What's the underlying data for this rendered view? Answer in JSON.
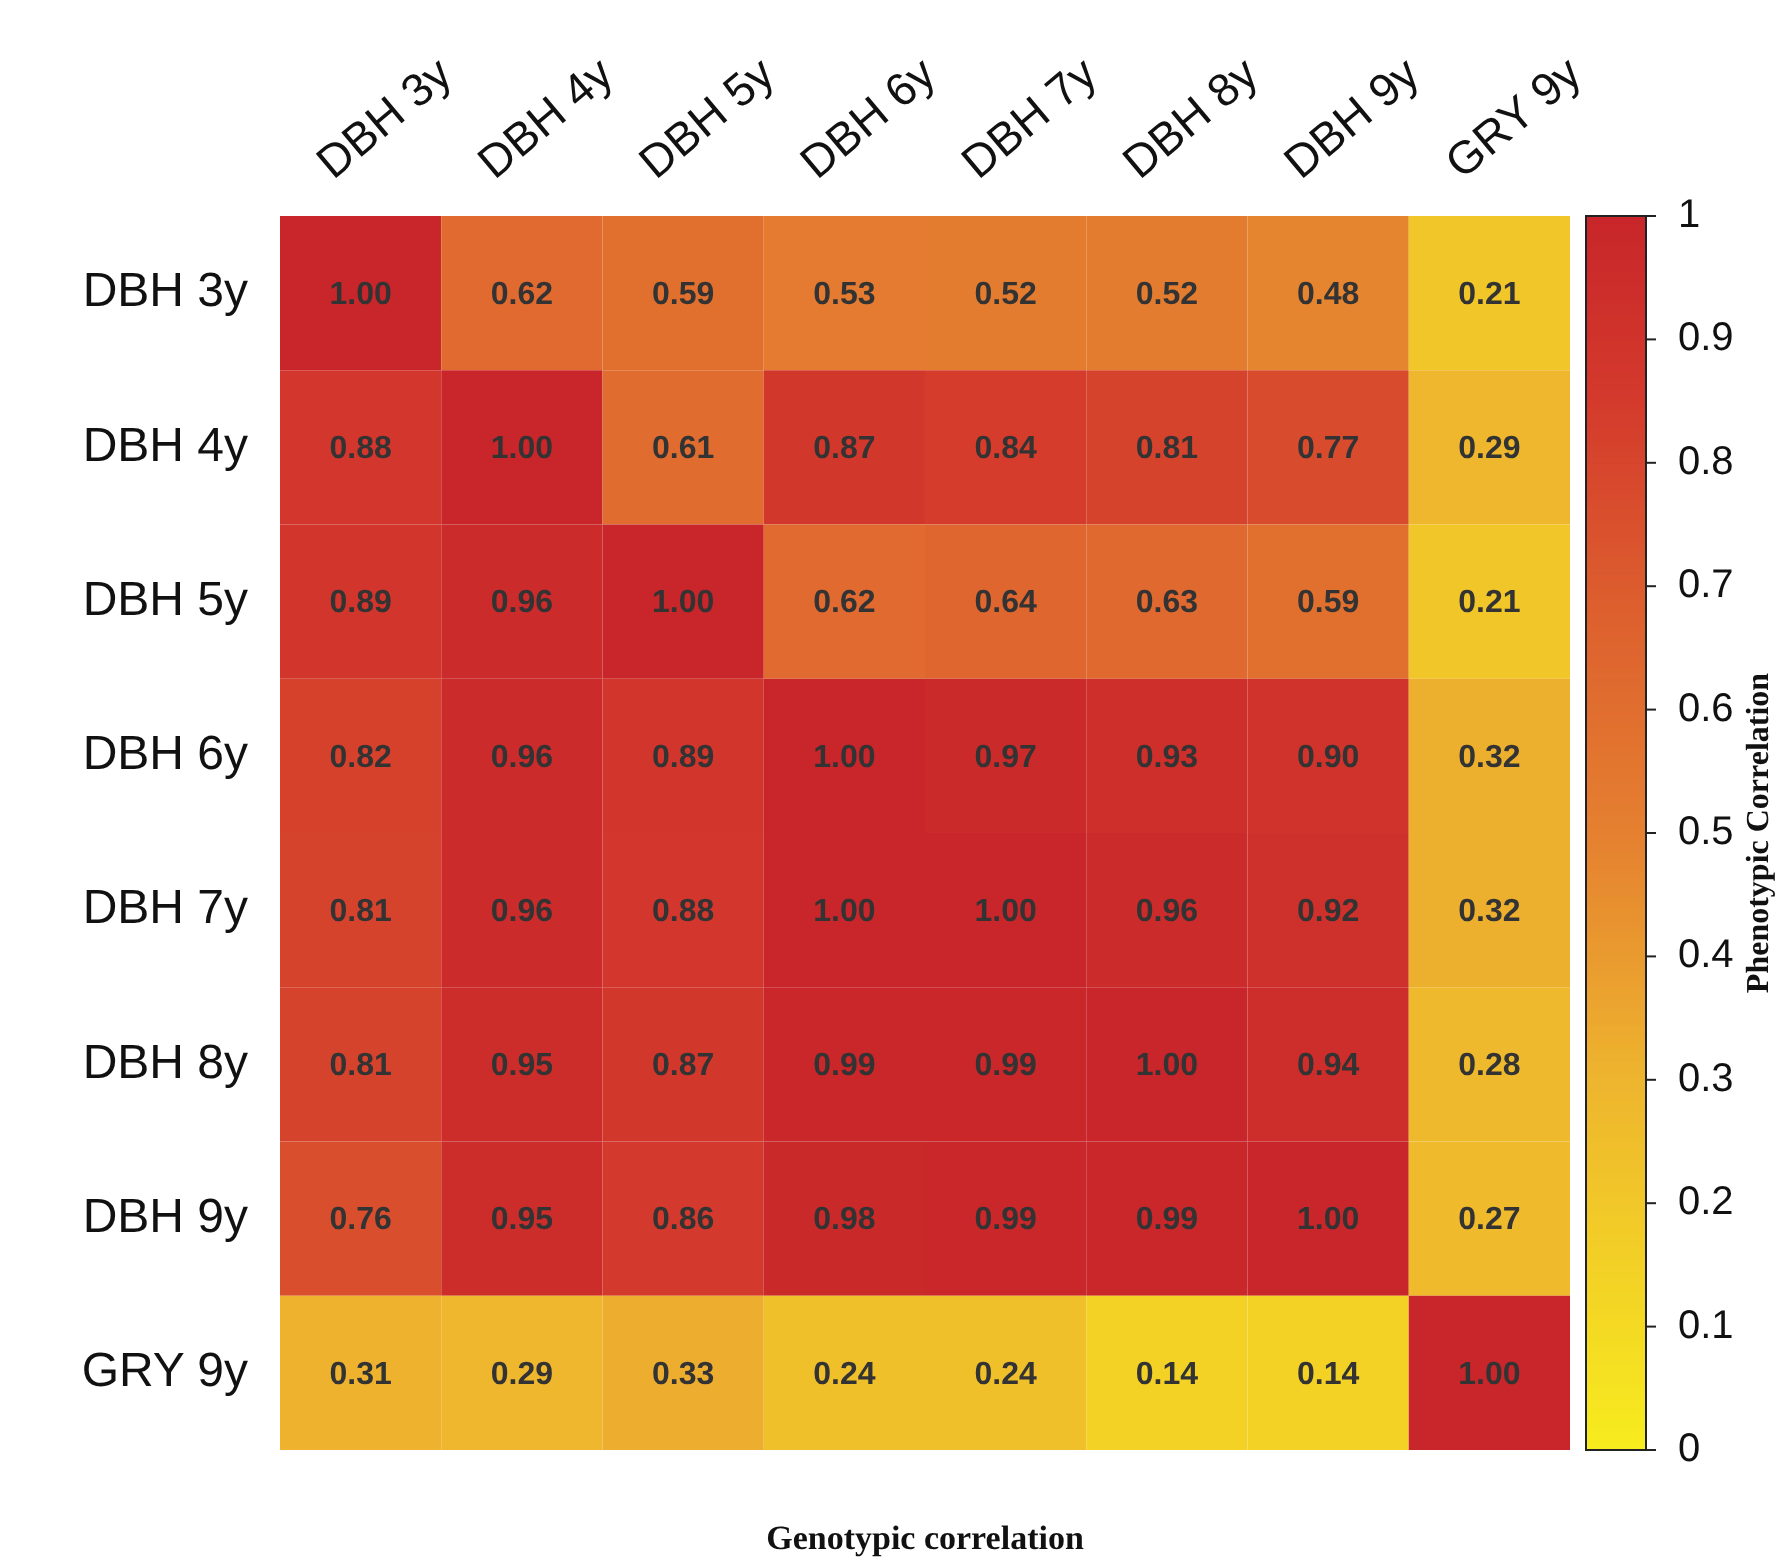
{
  "chart_data": {
    "type": "heatmap",
    "xlabel": "Genotypic correlation",
    "clabel": "Phenotypic Correlation",
    "categories": [
      "DBH 3y",
      "DBH 4y",
      "DBH 5y",
      "DBH 6y",
      "DBH 7y",
      "DBH 8y",
      "DBH 9y",
      "GRY 9y"
    ],
    "y_categories": [
      "DBH 3y",
      "DBH 4y",
      "DBH 5y",
      "DBH 6y",
      "DBH 7y",
      "DBH 8y",
      "DBH 9y",
      "GRY 9y"
    ],
    "cells": [
      [
        1.0,
        0.62,
        0.59,
        0.53,
        0.52,
        0.52,
        0.48,
        0.21
      ],
      [
        0.88,
        1.0,
        0.61,
        0.87,
        0.84,
        0.81,
        0.77,
        0.29
      ],
      [
        0.89,
        0.96,
        1.0,
        0.62,
        0.64,
        0.63,
        0.59,
        0.21
      ],
      [
        0.82,
        0.96,
        0.89,
        1.0,
        0.97,
        0.93,
        0.9,
        0.32
      ],
      [
        0.81,
        0.96,
        0.88,
        1.0,
        1.0,
        0.96,
        0.92,
        0.32
      ],
      [
        0.81,
        0.95,
        0.87,
        0.99,
        0.99,
        1.0,
        0.94,
        0.28
      ],
      [
        0.76,
        0.95,
        0.86,
        0.98,
        0.99,
        0.99,
        1.0,
        0.27
      ],
      [
        0.31,
        0.29,
        0.33,
        0.24,
        0.24,
        0.14,
        0.14,
        1.0
      ]
    ],
    "cell_labels": [
      [
        "1.00",
        "0.62",
        "0.59",
        "0.53",
        "0.52",
        "0.52",
        "0.48",
        "0.21"
      ],
      [
        "0.88",
        "1.00",
        "0.61",
        "0.87",
        "0.84",
        "0.81",
        "0.77",
        "0.29"
      ],
      [
        "0.89",
        "0.96",
        "1.00",
        "0.62",
        "0.64",
        "0.63",
        "0.59",
        "0.21"
      ],
      [
        "0.82",
        "0.96",
        "0.89",
        "1.00",
        "0.97",
        "0.93",
        "0.90",
        "0.32"
      ],
      [
        "0.81",
        "0.96",
        "0.88",
        "1.00",
        "1.00",
        "0.96",
        "0.92",
        "0.32"
      ],
      [
        "0.81",
        "0.95",
        "0.87",
        "0.99",
        "0.99",
        "1.00",
        "0.94",
        "0.28"
      ],
      [
        "0.76",
        "0.95",
        "0.86",
        "0.98",
        "0.99",
        "0.99",
        "1.00",
        "0.27"
      ],
      [
        "0.31",
        "0.29",
        "0.33",
        "0.24",
        "0.24",
        "0.14",
        "0.14",
        "1.00"
      ]
    ],
    "data_labels": true,
    "clim": [
      0,
      1
    ],
    "cticks": [
      0,
      0.1,
      0.2,
      0.3,
      0.4,
      0.5,
      0.6,
      0.7,
      0.8,
      0.9,
      1
    ]
  }
}
